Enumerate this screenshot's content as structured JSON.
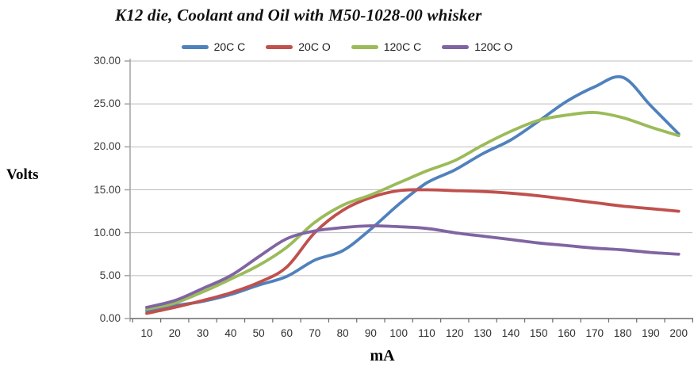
{
  "chart_data": {
    "type": "line",
    "title": "K12 die, Coolant and Oil with M50-1028-00 whisker",
    "xlabel": "mA",
    "ylabel": "Volts",
    "x": [
      10,
      20,
      30,
      40,
      50,
      60,
      70,
      80,
      90,
      100,
      110,
      120,
      130,
      140,
      150,
      160,
      170,
      180,
      190,
      200
    ],
    "ylim": [
      0,
      30
    ],
    "y_tick_labels": [
      "30.00",
      "25.00",
      "20.00",
      "15.00",
      "10.00",
      "5.00",
      "0.00"
    ],
    "grid": true,
    "legend_position": "top",
    "smooth_lines": true,
    "series": [
      {
        "name": "20C C",
        "color": "#4F81BD",
        "values": [
          0.9,
          1.5,
          2.0,
          2.8,
          3.9,
          4.9,
          6.8,
          7.9,
          10.4,
          13.3,
          15.8,
          17.3,
          19.2,
          20.8,
          23.0,
          25.3,
          27.0,
          28.1,
          24.8,
          21.5
        ]
      },
      {
        "name": "20C O",
        "color": "#C0504D",
        "values": [
          0.6,
          1.3,
          2.1,
          3.0,
          4.2,
          6.0,
          10.0,
          12.6,
          14.1,
          14.9,
          15.0,
          14.9,
          14.8,
          14.6,
          14.3,
          13.9,
          13.5,
          13.1,
          12.8,
          12.5
        ]
      },
      {
        "name": "120C C",
        "color": "#9BBB59",
        "values": [
          1.1,
          1.8,
          3.1,
          4.6,
          6.2,
          8.3,
          11.2,
          13.2,
          14.4,
          15.8,
          17.2,
          18.4,
          20.2,
          21.8,
          23.1,
          23.7,
          24.0,
          23.4,
          22.3,
          21.3
        ]
      },
      {
        "name": "120C O",
        "color": "#8064A2",
        "values": [
          1.3,
          2.1,
          3.5,
          5.0,
          7.2,
          9.3,
          10.2,
          10.6,
          10.8,
          10.7,
          10.5,
          10.0,
          9.6,
          9.2,
          8.8,
          8.5,
          8.2,
          8.0,
          7.7,
          7.5
        ]
      }
    ],
    "colors": {
      "gridline": "#BDBDBD",
      "y_axis": "#A3A3A3",
      "x_axis": "#6B6B6B",
      "title_text": "#111111",
      "tick_text": "#3A3A3A"
    }
  }
}
